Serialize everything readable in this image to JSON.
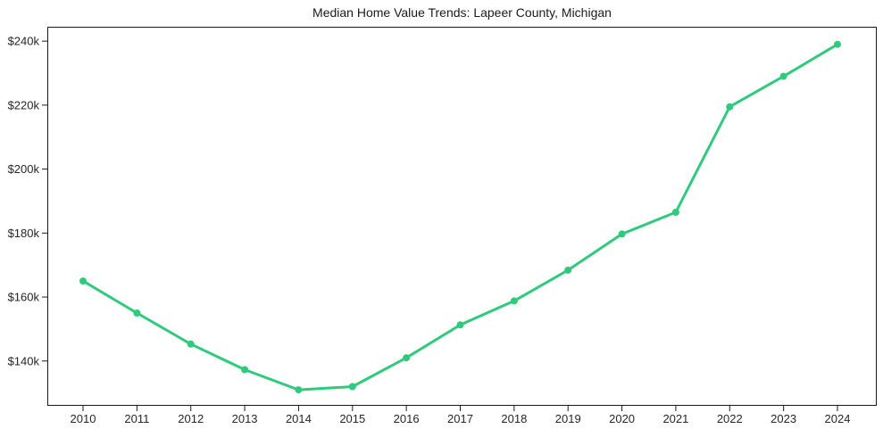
{
  "chart_data": {
    "type": "line",
    "title": "Median Home Value Trends: Lapeer County, Michigan",
    "categories": [
      "2010",
      "2011",
      "2012",
      "2013",
      "2014",
      "2015",
      "2016",
      "2017",
      "2018",
      "2019",
      "2020",
      "2021",
      "2022",
      "2023",
      "2024"
    ],
    "values": [
      165.0,
      155.0,
      145.3,
      137.3,
      131.0,
      132.0,
      141.0,
      151.3,
      158.8,
      168.4,
      179.7,
      186.5,
      219.5,
      229.0,
      239.0
    ],
    "value_unit": "USD thousands",
    "xlabel": "",
    "ylabel": "",
    "y_tick_values": [
      140,
      160,
      180,
      200,
      220,
      240
    ],
    "y_tick_labels": [
      "$140k",
      "$160k",
      "$180k",
      "$200k",
      "$220k",
      "$240k"
    ],
    "ylim": [
      126.0,
      244.5
    ],
    "grid": false,
    "legend": "none",
    "line_color": "#2fca7c",
    "marker": "circle",
    "axis_color": "#1a1a1a",
    "text_color": "#262626",
    "background_color": "#ffffff"
  }
}
